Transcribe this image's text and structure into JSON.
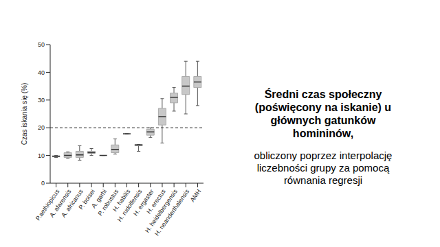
{
  "chart_data": {
    "type": "box",
    "title": "Średni czas społeczny (poświęcony na iskanie) u głównych gatunków homininów,",
    "subtitle": "obliczony poprzez interpolację liczebności grupy za pomocą równania regresji",
    "y_label": "Czas iskania się (%)",
    "categories": [
      "P.aethiopicus",
      "A. afarensis",
      "A. africanus",
      "P. boisei",
      "A. garhi",
      "P. robustus",
      "H. habilis",
      "H. rudolfensis",
      "H. ergaster",
      "H. erectus",
      "H. heidelbergensis",
      "H. neanderthalensis",
      "AMH"
    ],
    "min": [
      9.3,
      9,
      8.3,
      10,
      10,
      10.5,
      17.8,
      11.5,
      16.5,
      14.5,
      26,
      25,
      28
    ],
    "q1": [
      9.5,
      9.3,
      9.3,
      10.8,
      10,
      11,
      17.8,
      13.5,
      17.3,
      21,
      29,
      32,
      34.5
    ],
    "median": [
      9.7,
      10,
      10.2,
      11,
      10,
      12.2,
      17.8,
      13.8,
      18.5,
      24,
      31,
      35,
      36.5
    ],
    "q3": [
      9.9,
      11,
      11.5,
      11.5,
      10,
      13.8,
      17.8,
      14,
      19.5,
      27,
      32.5,
      38.5,
      38.5
    ],
    "max": [
      10,
      11.3,
      13.5,
      12.5,
      10,
      16,
      17.8,
      14,
      20,
      30.5,
      34.5,
      44,
      44
    ],
    "color": "#c8c8c8",
    "median_color": "#333333",
    "reference_line": {
      "y": 20,
      "line_style": "dashed"
    },
    "ylim": [
      0,
      50
    ],
    "yticks": [
      0,
      10,
      20,
      30,
      40,
      50
    ],
    "grid": false
  }
}
